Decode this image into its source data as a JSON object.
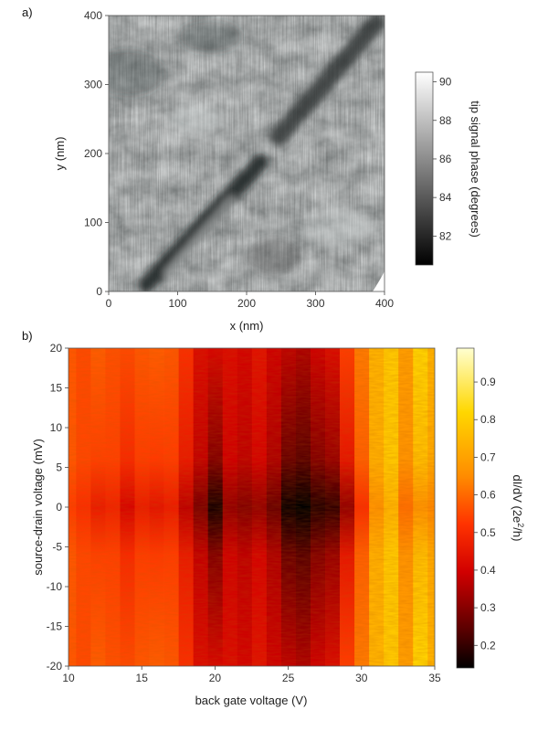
{
  "chart_data": [
    {
      "panel_label": "a)",
      "type": "heatmap",
      "description_kind": "afm_phase_image",
      "xlabel": "x (nm)",
      "ylabel": "y (nm)",
      "xlim": [
        0,
        400
      ],
      "ylim": [
        0,
        400
      ],
      "xticks": [
        "0",
        "100",
        "200",
        "300",
        "400"
      ],
      "yticks": [
        "0",
        "100",
        "200",
        "300",
        "400"
      ],
      "colorbar": {
        "label": "tip signal phase (degrees)",
        "range": [
          80.5,
          90.5
        ],
        "ticks": [
          "82",
          "84",
          "86",
          "88",
          "90"
        ],
        "colormap": [
          "#000000",
          "#ffffff"
        ]
      },
      "features": [
        {
          "kind": "dark_stripe",
          "from": [
            40,
            10
          ],
          "to": [
            225,
            185
          ]
        },
        {
          "kind": "dark_stripe",
          "from": [
            255,
            215
          ],
          "to": [
            400,
            395
          ]
        }
      ]
    },
    {
      "panel_label": "b)",
      "type": "heatmap",
      "xlabel": "back gate voltage (V)",
      "ylabel": "source-drain voltage (mV)",
      "xlim": [
        10,
        35
      ],
      "ylim": [
        -20,
        20
      ],
      "xticks": [
        "10",
        "15",
        "20",
        "25",
        "30",
        "35"
      ],
      "yticks": [
        "-20",
        "-15",
        "-10",
        "-5",
        "0",
        "5",
        "10",
        "15",
        "20"
      ],
      "colorbar": {
        "label": "dI/dV (2e",
        "label_sup": "2",
        "label_end": "/h)",
        "range": [
          0.14,
          0.99
        ],
        "ticks": [
          "0.2",
          "0.3",
          "0.4",
          "0.5",
          "0.6",
          "0.7",
          "0.8",
          "0.9"
        ],
        "colormap": [
          "#000000",
          "#5a0000",
          "#d10000",
          "#ff3300",
          "#ff8c00",
          "#ffd700",
          "#ffffd0"
        ]
      },
      "conductance_profile": {
        "gate_voltage": [
          10,
          11,
          12,
          13,
          14,
          15,
          16,
          17,
          18,
          19,
          20,
          21,
          22,
          23,
          24,
          25,
          26,
          27,
          28,
          29,
          30,
          31,
          32,
          33,
          34,
          35
        ],
        "dIdV_at_high_bias": [
          0.62,
          0.6,
          0.63,
          0.61,
          0.6,
          0.62,
          0.63,
          0.62,
          0.55,
          0.45,
          0.44,
          0.45,
          0.43,
          0.47,
          0.42,
          0.4,
          0.38,
          0.42,
          0.45,
          0.58,
          0.68,
          0.78,
          0.82,
          0.74,
          0.84,
          0.78
        ],
        "dIdV_at_zero_bias": [
          0.58,
          0.55,
          0.5,
          0.52,
          0.44,
          0.5,
          0.48,
          0.5,
          0.4,
          0.32,
          0.18,
          0.35,
          0.33,
          0.35,
          0.3,
          0.16,
          0.14,
          0.2,
          0.22,
          0.35,
          0.55,
          0.72,
          0.78,
          0.66,
          0.72,
          0.7
        ]
      }
    }
  ]
}
